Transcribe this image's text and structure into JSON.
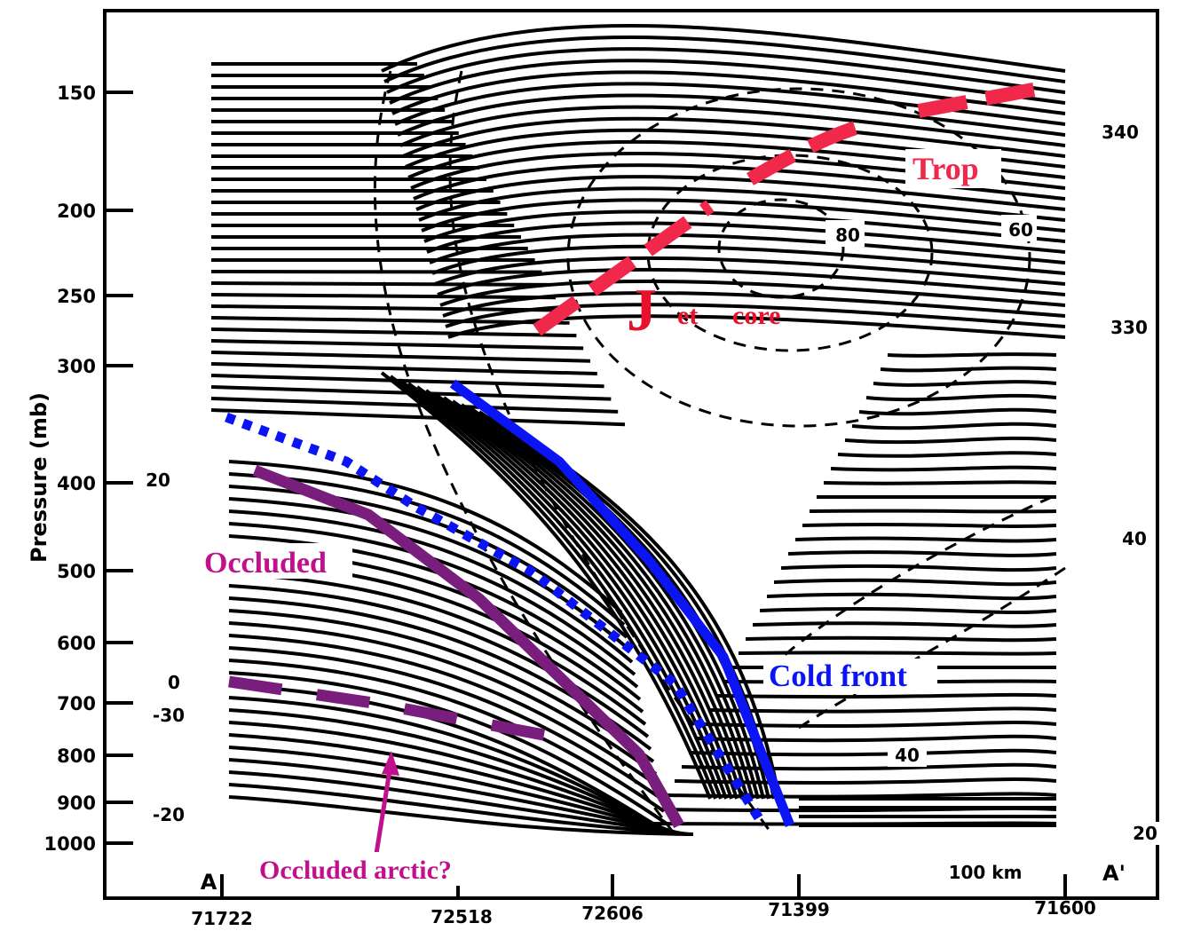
{
  "axis": {
    "title": "Pressure (mb)",
    "pressure_ticks": [
      "150",
      "200",
      "250",
      "300",
      "400",
      "500",
      "600",
      "700",
      "800",
      "900",
      "1000"
    ]
  },
  "stations": [
    "71722",
    "72518",
    "72606",
    "71399",
    "71600"
  ],
  "section_ends": {
    "left": "A",
    "right": "A'"
  },
  "isotach_labels": [
    "80",
    "60",
    "40",
    "40",
    "20",
    "20"
  ],
  "isentrope_labels": [
    "340",
    "330",
    "20",
    "0",
    "-30",
    "-20"
  ],
  "scale_note": "100 km",
  "annotations": {
    "trop": "Trop",
    "jet_core_j": "J",
    "jet_core_et": "et",
    "jet_core_core": "core",
    "cold_front": "Cold front",
    "occluded": "Occluded",
    "occluded_arctic": "Occluded arctic?"
  },
  "colors": {
    "tropopause": "#f0294a",
    "jet_text": "#e8102a",
    "cold_front": "#0a14f5",
    "occluded": "#7a1e7e",
    "occluded_text": "#c0108c",
    "ink": "#000000"
  }
}
